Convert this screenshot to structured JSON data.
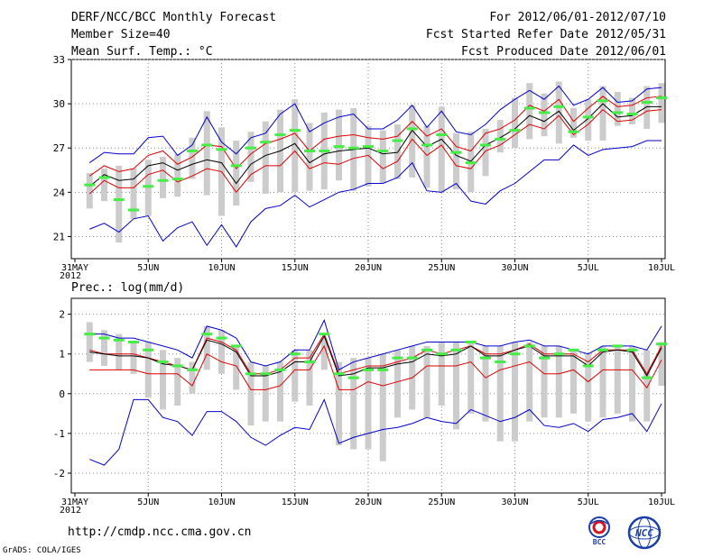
{
  "header": {
    "line1": "DERF/NCC/BCC Monthly Forecast",
    "line2": "Member Size=40",
    "line3": "Mean Surf. Temp.: °C",
    "right1": "For 2012/06/01-2012/07/10",
    "right2": "Fcst Started Refer Date 2012/05/31",
    "right3": "Fcst Produced Date 2012/06/01"
  },
  "footer": {
    "url": "http://cmdp.ncc.cma.gov.cn",
    "grads": "GrADS: COLA/IGES",
    "bcc_logo_text": "BCC",
    "ncc_logo_text": "NCC"
  },
  "colors": {
    "bars": "#cccccc",
    "ensemble_max": "#0000cc",
    "ensemble_min": "#0000cc",
    "spread_upper": "#dd0000",
    "spread_lower": "#dd0000",
    "ensemble_mean": "#000000",
    "climatology": "#44ee44",
    "grid": "#888888"
  },
  "chart_data": [
    {
      "type": "line",
      "title": "Mean Surf. Temp.: °C",
      "xlabel": "",
      "ylabel": "°C",
      "ylim": [
        19.5,
        33
      ],
      "yticks": [
        21,
        24,
        27,
        30,
        33
      ],
      "x_ticks": [
        "31MAY",
        "5JUN",
        "10JUN",
        "15JUN",
        "20JUN",
        "25JUN",
        "30JUN",
        "5JUL",
        "10JUL"
      ],
      "x_year_label": "2012",
      "x": [
        1,
        2,
        3,
        4,
        5,
        6,
        7,
        8,
        9,
        10,
        11,
        12,
        13,
        14,
        15,
        16,
        17,
        18,
        19,
        20,
        21,
        22,
        23,
        24,
        25,
        26,
        27,
        28,
        29,
        30,
        31,
        32,
        33,
        34,
        35,
        36,
        37,
        38,
        39,
        40
      ],
      "bars": {
        "top": [
          25.3,
          25.6,
          25.8,
          25.6,
          26.2,
          26.4,
          26.6,
          27.7,
          29.5,
          28.4,
          27.5,
          28.1,
          28.8,
          29.6,
          30.3,
          28.7,
          29.4,
          29.6,
          29.7,
          28.5,
          28.2,
          28.6,
          29.9,
          28.5,
          29.8,
          28.0,
          28.1,
          28.3,
          28.9,
          30.4,
          31.4,
          30.7,
          31.5,
          29.7,
          30.3,
          31.2,
          30.8,
          30.4,
          31.2,
          31.4
        ],
        "bottom": [
          22.9,
          23.4,
          20.6,
          22.2,
          22.4,
          23.6,
          23.7,
          24.9,
          23.8,
          22.4,
          23.1,
          24.7,
          23.9,
          24.0,
          24.0,
          24.1,
          24.2,
          24.8,
          24.1,
          24.4,
          24.6,
          24.9,
          25.0,
          24.3,
          24.0,
          24.2,
          24.0,
          25.1,
          26.7,
          27.0,
          27.6,
          27.8,
          27.3,
          27.7,
          27.5,
          27.5,
          28.5,
          28.6,
          28.3,
          28.7
        ]
      },
      "series": [
        {
          "name": "ensemble_max",
          "values": [
            26.0,
            26.7,
            26.6,
            26.6,
            27.7,
            27.8,
            26.5,
            27.2,
            29.1,
            27.4,
            26.6,
            27.7,
            28.0,
            29.3,
            30.0,
            28.1,
            28.7,
            29.1,
            29.3,
            28.3,
            28.3,
            28.9,
            29.9,
            28.4,
            29.5,
            28.1,
            27.9,
            28.6,
            29.6,
            30.3,
            30.9,
            30.3,
            31.2,
            29.9,
            30.3,
            31.1,
            30.1,
            30.2,
            31.0,
            31.1
          ]
        },
        {
          "name": "spread_upper",
          "values": [
            25.1,
            25.8,
            25.4,
            25.6,
            26.5,
            26.8,
            25.9,
            26.4,
            27.2,
            27.1,
            25.6,
            26.6,
            27.3,
            27.6,
            28.0,
            26.8,
            27.6,
            27.8,
            27.9,
            27.7,
            27.6,
            27.8,
            28.8,
            27.8,
            28.3,
            27.1,
            26.8,
            28.0,
            28.3,
            28.9,
            29.9,
            29.5,
            30.3,
            28.8,
            29.7,
            30.5,
            29.8,
            29.9,
            30.4,
            30.5
          ]
        },
        {
          "name": "ensemble_mean",
          "values": [
            24.4,
            25.2,
            24.8,
            24.9,
            25.8,
            26.0,
            25.5,
            25.9,
            26.2,
            26.0,
            24.6,
            25.9,
            26.5,
            26.8,
            27.3,
            26.0,
            26.6,
            26.8,
            26.9,
            27.0,
            26.6,
            26.7,
            28.2,
            27.1,
            27.6,
            26.5,
            26.1,
            27.2,
            27.7,
            28.3,
            29.2,
            28.8,
            29.5,
            28.2,
            29.0,
            30.0,
            29.1,
            29.2,
            29.8,
            29.8
          ]
        },
        {
          "name": "spread_lower",
          "values": [
            23.9,
            24.8,
            24.3,
            24.3,
            25.2,
            25.5,
            24.7,
            25.1,
            25.6,
            25.4,
            24.0,
            25.2,
            25.8,
            25.8,
            26.8,
            25.6,
            26.0,
            25.9,
            26.3,
            26.5,
            25.6,
            26.1,
            27.6,
            26.5,
            27.2,
            25.8,
            25.6,
            26.8,
            27.2,
            27.9,
            28.6,
            28.3,
            29.2,
            27.9,
            28.6,
            29.6,
            28.8,
            28.9,
            29.5,
            29.6
          ]
        },
        {
          "name": "ensemble_min",
          "values": [
            21.5,
            21.9,
            21.3,
            22.2,
            22.4,
            20.7,
            21.6,
            22.0,
            20.4,
            21.8,
            20.3,
            22.0,
            22.9,
            23.1,
            23.8,
            23.0,
            23.5,
            24.0,
            24.2,
            24.6,
            24.6,
            25.0,
            26.0,
            24.1,
            24.0,
            24.6,
            23.4,
            23.2,
            24.1,
            24.6,
            25.4,
            26.2,
            26.2,
            27.2,
            26.5,
            26.9,
            27.0,
            27.1,
            27.5,
            27.5
          ]
        },
        {
          "name": "climatology",
          "values": [
            24.5,
            25.0,
            23.5,
            22.8,
            24.4,
            24.8,
            24.9,
            26.8,
            27.2,
            26.9,
            25.8,
            27.0,
            27.4,
            27.9,
            28.2,
            26.8,
            26.8,
            27.1,
            27.0,
            27.1,
            26.8,
            27.5,
            28.3,
            27.2,
            27.9,
            26.7,
            26.0,
            27.2,
            27.6,
            28.2,
            29.7,
            29.4,
            29.8,
            28.1,
            29.1,
            30.2,
            29.4,
            29.3,
            30.1,
            30.4
          ]
        }
      ]
    },
    {
      "type": "line",
      "title": "Prec.: log(mm/d)",
      "xlabel": "",
      "ylabel": "log(mm/d)",
      "ylim": [
        -2.5,
        2.4
      ],
      "yticks": [
        -2,
        -1,
        0,
        1,
        2
      ],
      "x_ticks": [
        "31MAY",
        "5JUN",
        "10JUN",
        "15JUN",
        "20JUN",
        "25JUN",
        "30JUN",
        "5JUL",
        "10JUL"
      ],
      "x_year_label": "2012",
      "x": [
        1,
        2,
        3,
        4,
        5,
        6,
        7,
        8,
        9,
        10,
        11,
        12,
        13,
        14,
        15,
        16,
        17,
        18,
        19,
        20,
        21,
        22,
        23,
        24,
        25,
        26,
        27,
        28,
        29,
        30,
        31,
        32,
        33,
        34,
        35,
        36,
        37,
        38,
        39,
        40
      ],
      "bars": {
        "top": [
          1.8,
          1.6,
          1.5,
          1.3,
          1.3,
          1.1,
          0.9,
          0.8,
          1.7,
          1.6,
          1.2,
          0.8,
          0.7,
          0.8,
          1.1,
          1.1,
          1.4,
          0.8,
          0.9,
          0.9,
          1.0,
          1.1,
          1.2,
          1.2,
          1.3,
          1.3,
          1.3,
          1.2,
          1.2,
          1.3,
          1.3,
          1.2,
          1.2,
          1.1,
          1.0,
          1.2,
          1.2,
          1.2,
          1.1,
          1.3
        ],
        "bottom": [
          0.8,
          0.7,
          0.6,
          0.5,
          -0.1,
          -0.4,
          -0.3,
          0.0,
          0.6,
          0.5,
          0.1,
          -0.8,
          -0.7,
          -0.7,
          -0.2,
          -0.3,
          0.6,
          -1.3,
          -1.4,
          -1.4,
          -1.7,
          -0.6,
          -0.4,
          -0.6,
          -0.3,
          -0.9,
          -0.5,
          -0.7,
          -1.2,
          -1.2,
          -0.7,
          -0.6,
          -0.6,
          -0.5,
          -0.7,
          -0.6,
          -0.5,
          -0.7,
          -0.7,
          0.2
        ]
      },
      "series": [
        {
          "name": "ensemble_max",
          "values": [
            1.5,
            1.5,
            1.4,
            1.4,
            1.3,
            1.2,
            1.1,
            0.9,
            1.7,
            1.6,
            1.4,
            0.8,
            0.7,
            0.8,
            1.1,
            1.1,
            1.85,
            0.6,
            0.8,
            0.9,
            1.0,
            1.1,
            1.2,
            1.3,
            1.3,
            1.3,
            1.3,
            1.2,
            1.2,
            1.3,
            1.35,
            1.2,
            1.2,
            1.1,
            1.0,
            1.2,
            1.2,
            1.2,
            1.1,
            1.7
          ]
        },
        {
          "name": "spread_upper",
          "values": [
            1.1,
            1.0,
            1.0,
            1.0,
            0.9,
            0.8,
            0.7,
            0.6,
            1.4,
            1.3,
            1.1,
            0.5,
            0.5,
            0.6,
            0.9,
            0.9,
            1.5,
            0.5,
            0.6,
            0.7,
            0.7,
            0.8,
            0.9,
            1.1,
            1.0,
            1.1,
            1.2,
            1.0,
            1.0,
            1.1,
            1.25,
            1.0,
            1.0,
            1.0,
            0.8,
            1.1,
            1.1,
            1.1,
            0.5,
            1.2
          ]
        },
        {
          "name": "ensemble_mean",
          "values": [
            1.05,
            1.0,
            0.95,
            0.95,
            0.9,
            0.75,
            0.7,
            0.6,
            1.35,
            1.25,
            1.05,
            0.45,
            0.45,
            0.55,
            0.8,
            0.8,
            1.45,
            0.45,
            0.5,
            0.65,
            0.65,
            0.75,
            0.8,
            1.0,
            0.95,
            1.0,
            1.2,
            0.95,
            0.95,
            1.1,
            1.2,
            0.95,
            0.95,
            0.95,
            0.7,
            1.05,
            1.1,
            1.05,
            0.45,
            1.15
          ]
        },
        {
          "name": "spread_lower",
          "values": [
            0.6,
            0.6,
            0.6,
            0.6,
            0.5,
            0.5,
            0.5,
            0.2,
            1.0,
            0.8,
            0.7,
            0.1,
            0.1,
            0.2,
            0.6,
            0.6,
            1.2,
            0.1,
            0.1,
            0.3,
            0.2,
            0.3,
            0.4,
            0.7,
            0.7,
            0.7,
            0.8,
            0.4,
            0.6,
            0.7,
            0.8,
            0.5,
            0.5,
            0.6,
            0.3,
            0.6,
            0.6,
            0.6,
            0.15,
            0.85
          ]
        },
        {
          "name": "ensemble_min",
          "values": [
            -1.65,
            -1.8,
            -1.4,
            -0.15,
            -0.15,
            -0.6,
            -0.7,
            -1.05,
            -0.45,
            -0.45,
            -0.7,
            -1.1,
            -1.3,
            -1.05,
            -0.85,
            -0.9,
            -0.15,
            -1.25,
            -1.1,
            -1.0,
            -0.9,
            -0.85,
            -0.75,
            -0.6,
            -0.7,
            -0.75,
            -0.4,
            -0.55,
            -0.7,
            -0.6,
            -0.4,
            -0.8,
            -0.85,
            -0.75,
            -0.95,
            -0.65,
            -0.6,
            -0.5,
            -0.95,
            -0.25
          ]
        },
        {
          "name": "climatology",
          "values": [
            1.5,
            1.4,
            1.35,
            1.3,
            1.1,
            0.8,
            0.7,
            0.6,
            1.5,
            1.4,
            1.2,
            0.5,
            0.5,
            0.6,
            1.0,
            0.8,
            1.5,
            0.5,
            0.4,
            0.6,
            0.6,
            0.9,
            0.9,
            1.1,
            1.0,
            1.1,
            1.3,
            0.9,
            0.8,
            1.0,
            1.2,
            0.9,
            1.0,
            1.1,
            0.7,
            1.1,
            1.2,
            1.1,
            0.4,
            1.25
          ]
        }
      ]
    }
  ]
}
